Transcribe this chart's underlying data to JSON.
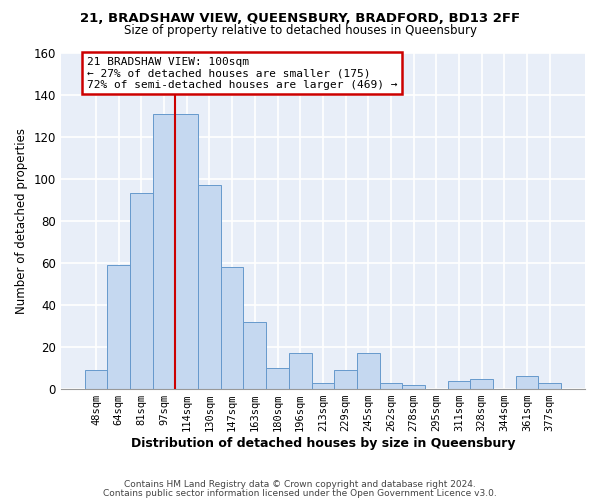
{
  "title1": "21, BRADSHAW VIEW, QUEENSBURY, BRADFORD, BD13 2FF",
  "title2": "Size of property relative to detached houses in Queensbury",
  "xlabel": "Distribution of detached houses by size in Queensbury",
  "ylabel": "Number of detached properties",
  "bar_labels": [
    "48sqm",
    "64sqm",
    "81sqm",
    "97sqm",
    "114sqm",
    "130sqm",
    "147sqm",
    "163sqm",
    "180sqm",
    "196sqm",
    "213sqm",
    "229sqm",
    "245sqm",
    "262sqm",
    "278sqm",
    "295sqm",
    "311sqm",
    "328sqm",
    "344sqm",
    "361sqm",
    "377sqm"
  ],
  "bar_values": [
    9,
    59,
    93,
    131,
    131,
    97,
    58,
    32,
    10,
    17,
    3,
    9,
    17,
    3,
    2,
    0,
    4,
    5,
    0,
    6,
    3
  ],
  "bar_color": "#c5d8f0",
  "bar_edge_color": "#6699cc",
  "vline_color": "#cc0000",
  "annotation_title": "21 BRADSHAW VIEW: 100sqm",
  "annotation_line1": "← 27% of detached houses are smaller (175)",
  "annotation_line2": "72% of semi-detached houses are larger (469) →",
  "annotation_box_color": "#ffffff",
  "annotation_box_edge": "#cc0000",
  "ylim": [
    0,
    160
  ],
  "yticks": [
    0,
    20,
    40,
    60,
    80,
    100,
    120,
    140,
    160
  ],
  "footer1": "Contains HM Land Registry data © Crown copyright and database right 2024.",
  "footer2": "Contains public sector information licensed under the Open Government Licence v3.0.",
  "bg_color": "#ffffff",
  "plot_bg_color": "#e8eef8"
}
